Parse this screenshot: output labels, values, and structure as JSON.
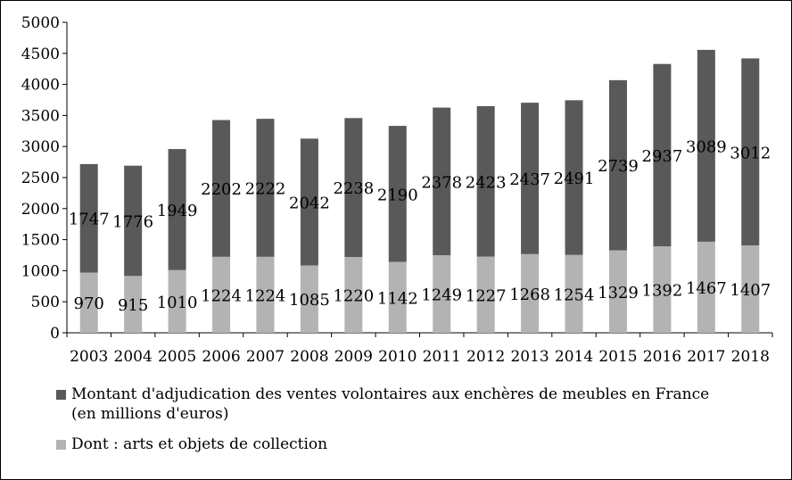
{
  "chart_data": {
    "type": "bar",
    "stacked": true,
    "categories": [
      "2003",
      "2004",
      "2005",
      "2006",
      "2007",
      "2008",
      "2009",
      "2010",
      "2011",
      "2012",
      "2013",
      "2014",
      "2015",
      "2016",
      "2017",
      "2018"
    ],
    "series": [
      {
        "name": "Dont : arts et objets de collection",
        "values": [
          970,
          915,
          1010,
          1224,
          1224,
          1085,
          1220,
          1142,
          1249,
          1227,
          1268,
          1254,
          1329,
          1392,
          1467,
          1407
        ],
        "color": "#b3b3b3"
      },
      {
        "name": "Montant d'adjudication des ventes volontaires aux enchères de meubles en France (en millions d'euros)",
        "values": [
          1747,
          1776,
          1949,
          2202,
          2222,
          2042,
          2238,
          2190,
          2378,
          2423,
          2437,
          2491,
          2739,
          2937,
          3089,
          3012
        ],
        "color": "#595959"
      }
    ],
    "yticks": [
      "0",
      "500",
      "1000",
      "1500",
      "2000",
      "2500",
      "3000",
      "3500",
      "4000",
      "4500",
      "5000"
    ],
    "ylim": [
      0,
      5000
    ],
    "grid": false,
    "legend_position": "bottom",
    "legend": [
      {
        "line1": "Montant d'adjudication des ventes volontaires aux enchères de meubles en France",
        "line2": "(en millions d'euros)",
        "color": "#595959"
      },
      {
        "line1": "Dont : arts et objets de collection",
        "line2": "",
        "color": "#b3b3b3"
      }
    ]
  }
}
